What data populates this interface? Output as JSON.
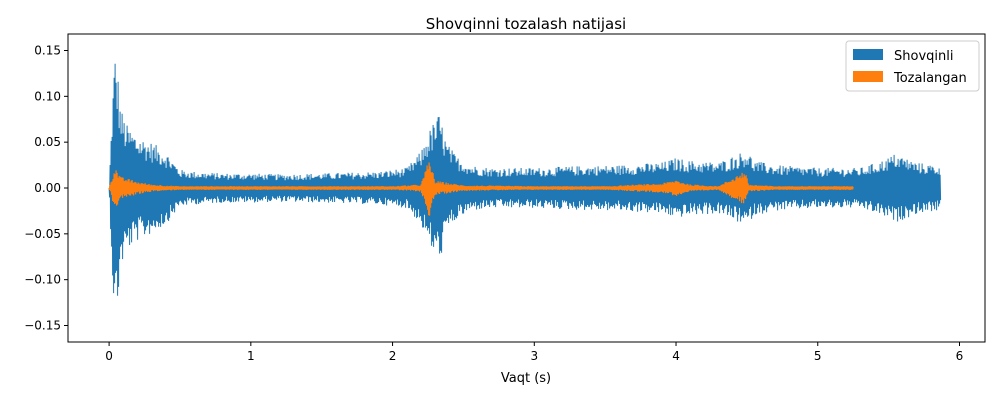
{
  "chart_data": {
    "type": "line",
    "title": "Shovqinni tozalash natijasi",
    "xlabel": "Vaqt (s)",
    "ylabel": "",
    "xlim": [
      -0.29,
      6.18
    ],
    "ylim": [
      -0.168,
      0.168
    ],
    "x_ticks": [
      {
        "value": 0,
        "label": "0"
      },
      {
        "value": 1,
        "label": "1"
      },
      {
        "value": 2,
        "label": "2"
      },
      {
        "value": 3,
        "label": "3"
      },
      {
        "value": 4,
        "label": "4"
      },
      {
        "value": 5,
        "label": "5"
      },
      {
        "value": 6,
        "label": "6"
      }
    ],
    "y_ticks": [
      {
        "value": 0.15,
        "label": "0.15"
      },
      {
        "value": 0.1,
        "label": "0.10"
      },
      {
        "value": 0.05,
        "label": "0.05"
      },
      {
        "value": 0.0,
        "label": "0.00"
      },
      {
        "value": -0.05,
        "label": "−0.05"
      },
      {
        "value": -0.1,
        "label": "−0.10"
      },
      {
        "value": -0.15,
        "label": "−0.15"
      }
    ],
    "grid": false,
    "legend_position": "top-right",
    "series": [
      {
        "name": "Shovqinli",
        "color": "#1f77b4",
        "x": [
          0,
          0.02,
          0.04,
          0.06,
          0.08,
          0.12,
          0.15,
          0.2,
          0.3,
          0.4,
          0.5,
          0.6,
          0.8,
          1.0,
          1.2,
          1.5,
          1.7,
          1.9,
          2.1,
          2.2,
          2.25,
          2.3,
          2.33,
          2.38,
          2.45,
          2.55,
          2.7,
          3.0,
          3.3,
          3.6,
          3.9,
          4.0,
          4.1,
          4.3,
          4.5,
          4.55,
          4.7,
          5.0,
          5.3,
          5.45,
          5.55,
          5.7,
          5.87
        ],
        "values": [
          0.0,
          0.085,
          0.152,
          0.13,
          0.09,
          0.07,
          0.065,
          0.058,
          0.05,
          0.04,
          0.02,
          0.018,
          0.016,
          0.016,
          0.015,
          0.016,
          0.017,
          0.018,
          0.022,
          0.04,
          0.06,
          0.075,
          0.082,
          0.05,
          0.035,
          0.025,
          0.022,
          0.022,
          0.024,
          0.025,
          0.028,
          0.033,
          0.03,
          0.028,
          0.042,
          0.03,
          0.025,
          0.022,
          0.022,
          0.03,
          0.038,
          0.028,
          0.024
        ]
      },
      {
        "name": "Tozalangan",
        "color": "#ff7f0e",
        "x": [
          0,
          0.02,
          0.04,
          0.08,
          0.12,
          0.2,
          0.3,
          0.5,
          1.0,
          1.5,
          2.0,
          2.2,
          2.26,
          2.3,
          2.5,
          3.0,
          3.5,
          3.75,
          3.9,
          4.0,
          4.1,
          4.3,
          4.49,
          4.51,
          4.7,
          5.0,
          5.25
        ],
        "values": [
          0.0,
          0.012,
          0.025,
          0.012,
          0.011,
          0.007,
          0.004,
          0.002,
          0.002,
          0.002,
          0.002,
          0.004,
          0.033,
          0.008,
          0.003,
          0.002,
          0.002,
          0.004,
          0.005,
          0.009,
          0.004,
          0.002,
          0.02,
          0.004,
          0.002,
          0.002,
          0.002
        ]
      }
    ]
  }
}
